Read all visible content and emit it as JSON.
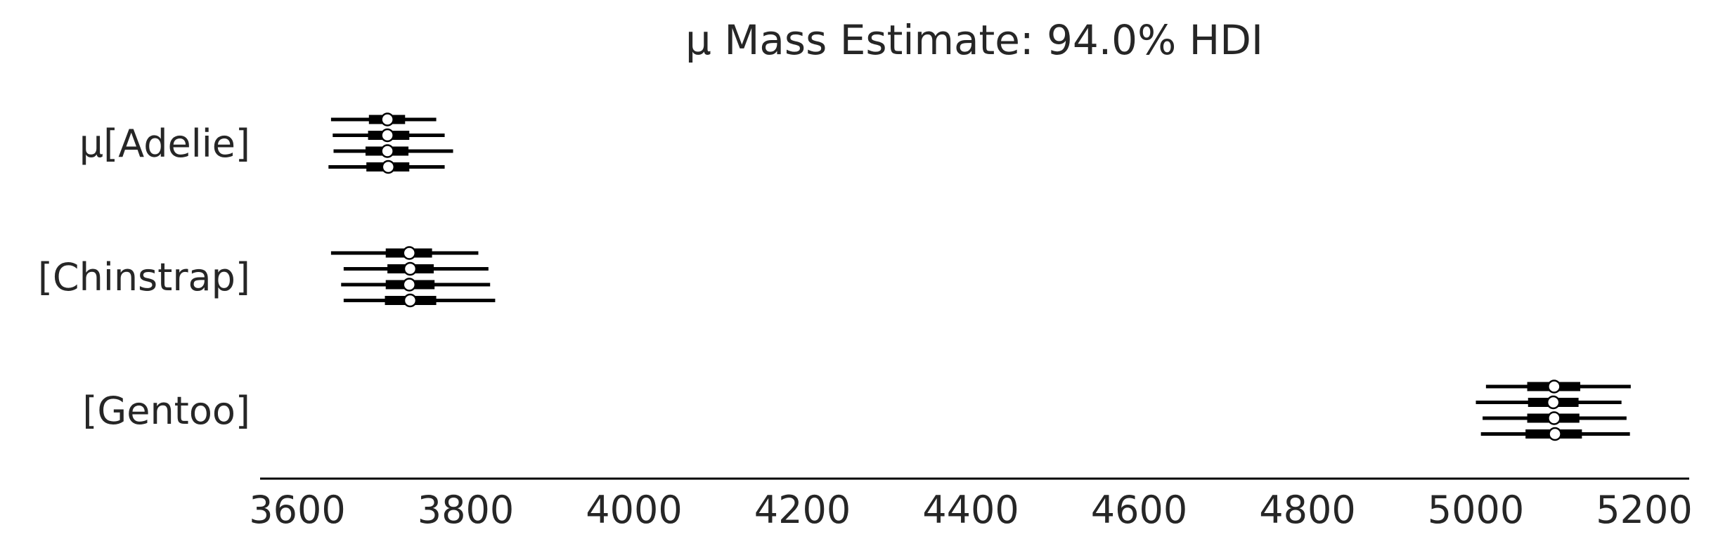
{
  "chart_data": {
    "type": "forest",
    "title": "μ Mass Estimate: 94.0% HDI",
    "xlabel": "",
    "ylabel": "",
    "xlim": [
      3575,
      5230
    ],
    "x_ticks": [
      3600,
      3800,
      4000,
      4200,
      4400,
      4600,
      4800,
      5000,
      5200
    ],
    "x_tick_labels": [
      "3600",
      "3800",
      "4000",
      "4200",
      "4400",
      "4600",
      "4800",
      "5000",
      "5200"
    ],
    "hdi_prob": 0.94,
    "colors": {
      "line": "#000000",
      "marker_fill": "#ffffff",
      "text": "#262626"
    },
    "groups": [
      {
        "label": "μ[Adelie]",
        "chains": [
          {
            "chain": 0,
            "median": 3707,
            "hdi_94": [
              3640,
              3765
            ],
            "iqr": [
              3685,
              3728
            ]
          },
          {
            "chain": 1,
            "median": 3707,
            "hdi_94": [
              3642,
              3775
            ],
            "iqr": [
              3684,
              3733
            ]
          },
          {
            "chain": 2,
            "median": 3707,
            "hdi_94": [
              3643,
              3785
            ],
            "iqr": [
              3681,
              3732
            ]
          },
          {
            "chain": 3,
            "median": 3708,
            "hdi_94": [
              3637,
              3775
            ],
            "iqr": [
              3682,
              3733
            ]
          }
        ]
      },
      {
        "label": "[Chinstrap]",
        "chains": [
          {
            "chain": 0,
            "median": 3733,
            "hdi_94": [
              3640,
              3815
            ],
            "iqr": [
              3705,
              3760
            ]
          },
          {
            "chain": 1,
            "median": 3734,
            "hdi_94": [
              3655,
              3827
            ],
            "iqr": [
              3707,
              3762
            ]
          },
          {
            "chain": 2,
            "median": 3733,
            "hdi_94": [
              3652,
              3829
            ],
            "iqr": [
              3705,
              3763
            ]
          },
          {
            "chain": 3,
            "median": 3734,
            "hdi_94": [
              3655,
              3835
            ],
            "iqr": [
              3704,
              3765
            ]
          }
        ]
      },
      {
        "label": "[Gentoo]",
        "chains": [
          {
            "chain": 0,
            "median": 5093,
            "hdi_94": [
              5012,
              5184
            ],
            "iqr": [
              5061,
              5124
            ]
          },
          {
            "chain": 1,
            "median": 5092,
            "hdi_94": [
              5000,
              5173
            ],
            "iqr": [
              5062,
              5122
            ]
          },
          {
            "chain": 2,
            "median": 5093,
            "hdi_94": [
              5008,
              5179
            ],
            "iqr": [
              5061,
              5123
            ]
          },
          {
            "chain": 3,
            "median": 5094,
            "hdi_94": [
              5006,
              5183
            ],
            "iqr": [
              5059,
              5126
            ]
          }
        ]
      }
    ]
  }
}
